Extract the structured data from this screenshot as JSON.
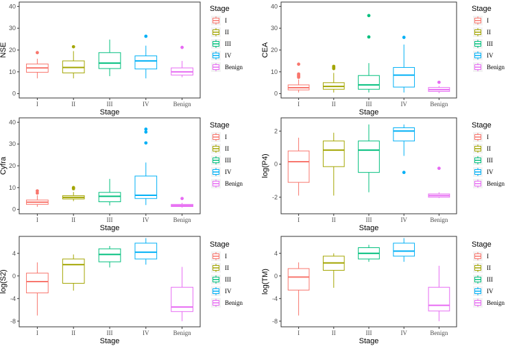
{
  "legend_title": "Stage",
  "categories": [
    "I",
    "II",
    "III",
    "IV",
    "Benign"
  ],
  "colors": [
    "#F8766D",
    "#A3A500",
    "#00BF7D",
    "#00B0F6",
    "#E76BF3"
  ],
  "chart_data": [
    {
      "type": "boxplot",
      "id": "nse",
      "ylabel": "NSE",
      "xlabel": "Stage",
      "ylim": [
        -2,
        42
      ],
      "yticks": [
        0,
        10,
        20,
        30,
        40
      ],
      "categories": [
        "I",
        "II",
        "III",
        "IV",
        "Benign"
      ],
      "boxes": [
        {
          "q1": 9.8,
          "median": 11.8,
          "q3": 13.6,
          "whisker_low": 7.0,
          "whisker_high": 16.0,
          "outliers": [
            18.8
          ]
        },
        {
          "q1": 9.5,
          "median": 12.0,
          "q3": 15.0,
          "whisker_low": 7.0,
          "whisker_high": 19.5,
          "outliers": [
            21.5
          ]
        },
        {
          "q1": 11.5,
          "median": 14.0,
          "q3": 18.8,
          "whisker_low": 8.0,
          "whisker_high": 24.8,
          "outliers": []
        },
        {
          "q1": 11.3,
          "median": 15.0,
          "q3": 17.3,
          "whisker_low": 7.0,
          "whisker_high": 22.0,
          "outliers": [
            26.3
          ]
        },
        {
          "q1": 8.5,
          "median": 10.0,
          "q3": 11.8,
          "whisker_low": 7.5,
          "whisker_high": 15.0,
          "outliers": [
            21.2
          ]
        }
      ]
    },
    {
      "type": "boxplot",
      "id": "cea",
      "ylabel": "CEA",
      "xlabel": "Stage",
      "ylim": [
        -2,
        42
      ],
      "yticks": [
        0,
        10,
        20,
        30,
        40
      ],
      "categories": [
        "I",
        "II",
        "III",
        "IV",
        "Benign"
      ],
      "boxes": [
        {
          "q1": 1.7,
          "median": 2.7,
          "q3": 4.0,
          "whisker_low": 0.5,
          "whisker_high": 6.5,
          "outliers": [
            7.5,
            8.0,
            8.5,
            9.0,
            13.5
          ]
        },
        {
          "q1": 2.0,
          "median": 3.3,
          "q3": 5.0,
          "whisker_low": 0.5,
          "whisker_high": 9.5,
          "outliers": [
            11.5,
            12.0,
            12.5
          ]
        },
        {
          "q1": 2.0,
          "median": 4.0,
          "q3": 8.3,
          "whisker_low": 0.5,
          "whisker_high": 14.0,
          "outliers": [
            26.0,
            35.8
          ]
        },
        {
          "q1": 3.0,
          "median": 8.5,
          "q3": 12.0,
          "whisker_low": 0.5,
          "whisker_high": 22.5,
          "outliers": [
            25.8
          ]
        },
        {
          "q1": 1.0,
          "median": 1.8,
          "q3": 2.8,
          "whisker_low": 0.2,
          "whisker_high": 3.5,
          "outliers": [
            5.2
          ]
        }
      ]
    },
    {
      "type": "boxplot",
      "id": "cyfra",
      "ylabel": "Cyfra",
      "xlabel": "Stage",
      "ylim": [
        -2,
        42
      ],
      "yticks": [
        0,
        10,
        20,
        30,
        40
      ],
      "categories": [
        "I",
        "II",
        "III",
        "IV",
        "Benign"
      ],
      "boxes": [
        {
          "q1": 2.3,
          "median": 3.3,
          "q3": 4.3,
          "whisker_low": 1.2,
          "whisker_high": 6.5,
          "outliers": [
            7.5,
            8.5
          ]
        },
        {
          "q1": 4.8,
          "median": 5.5,
          "q3": 6.3,
          "whisker_low": 3.8,
          "whisker_high": 8.0,
          "outliers": [
            9.5,
            10.0
          ]
        },
        {
          "q1": 3.5,
          "median": 6.0,
          "q3": 7.8,
          "whisker_low": 1.8,
          "whisker_high": 14.0,
          "outliers": []
        },
        {
          "q1": 5.0,
          "median": 6.5,
          "q3": 15.3,
          "whisker_low": 2.0,
          "whisker_high": 21.5,
          "outliers": [
            30.5,
            35.5,
            36.8
          ]
        },
        {
          "q1": 1.3,
          "median": 1.8,
          "q3": 2.3,
          "whisker_low": 0.8,
          "whisker_high": 3.0,
          "outliers": [
            5.0
          ]
        }
      ]
    },
    {
      "type": "boxplot",
      "id": "log-p4",
      "ylabel": "log(P4)",
      "xlabel": "Stage",
      "ylim": [
        -3.0,
        2.8
      ],
      "yticks": [
        -2,
        0,
        2
      ],
      "categories": [
        "I",
        "II",
        "III",
        "IV",
        "Benign"
      ],
      "boxes": [
        {
          "q1": -1.1,
          "median": 0.15,
          "q3": 0.8,
          "whisker_low": -1.9,
          "whisker_high": 1.6,
          "outliers": []
        },
        {
          "q1": -0.15,
          "median": 0.85,
          "q3": 1.4,
          "whisker_low": -1.9,
          "whisker_high": 1.9,
          "outliers": []
        },
        {
          "q1": -0.5,
          "median": 0.85,
          "q3": 1.4,
          "whisker_low": -1.7,
          "whisker_high": 2.4,
          "outliers": []
        },
        {
          "q1": 1.4,
          "median": 2.0,
          "q3": 2.2,
          "whisker_low": 0.5,
          "whisker_high": 2.4,
          "outliers": [
            -0.5
          ]
        },
        {
          "q1": -2.0,
          "median": -1.9,
          "q3": -1.8,
          "whisker_low": -2.05,
          "whisker_high": -1.7,
          "outliers": [
            -0.25
          ]
        }
      ]
    },
    {
      "type": "boxplot",
      "id": "log-s2",
      "ylabel": "log(S2)",
      "xlabel": "Stage",
      "ylim": [
        -9.0,
        7.0
      ],
      "yticks": [
        -8,
        -4,
        0,
        4
      ],
      "categories": [
        "I",
        "II",
        "III",
        "IV",
        "Benign"
      ],
      "boxes": [
        {
          "q1": -3.0,
          "median": -1.0,
          "q3": 0.5,
          "whisker_low": -7.0,
          "whisker_high": 2.4,
          "outliers": []
        },
        {
          "q1": -1.3,
          "median": 2.0,
          "q3": 3.0,
          "whisker_low": -2.6,
          "whisker_high": 3.8,
          "outliers": []
        },
        {
          "q1": 2.5,
          "median": 3.8,
          "q3": 4.8,
          "whisker_low": 1.5,
          "whisker_high": 5.3,
          "outliers": []
        },
        {
          "q1": 3.0,
          "median": 4.2,
          "q3": 5.8,
          "whisker_low": 2.0,
          "whisker_high": 6.7,
          "outliers": []
        },
        {
          "q1": -6.3,
          "median": -5.5,
          "q3": -2.0,
          "whisker_low": -8.0,
          "whisker_high": 1.6,
          "outliers": []
        }
      ]
    },
    {
      "type": "boxplot",
      "id": "log-tm",
      "ylabel": "log(TM)",
      "xlabel": "Stage",
      "ylim": [
        -9.0,
        7.0
      ],
      "yticks": [
        -8,
        -4,
        0,
        4
      ],
      "categories": [
        "I",
        "II",
        "III",
        "IV",
        "Benign"
      ],
      "boxes": [
        {
          "q1": -2.5,
          "median": -0.2,
          "q3": 1.3,
          "whisker_low": -7.0,
          "whisker_high": 2.4,
          "outliers": []
        },
        {
          "q1": 1.0,
          "median": 2.3,
          "q3": 3.5,
          "whisker_low": -2.1,
          "whisker_high": 4.0,
          "outliers": []
        },
        {
          "q1": 3.0,
          "median": 4.0,
          "q3": 5.0,
          "whisker_low": 2.5,
          "whisker_high": 5.5,
          "outliers": []
        },
        {
          "q1": 3.5,
          "median": 4.4,
          "q3": 5.8,
          "whisker_low": 2.5,
          "whisker_high": 6.7,
          "outliers": []
        },
        {
          "q1": -6.2,
          "median": -5.2,
          "q3": -2.0,
          "whisker_low": -8.0,
          "whisker_high": 1.8,
          "outliers": []
        }
      ]
    }
  ]
}
